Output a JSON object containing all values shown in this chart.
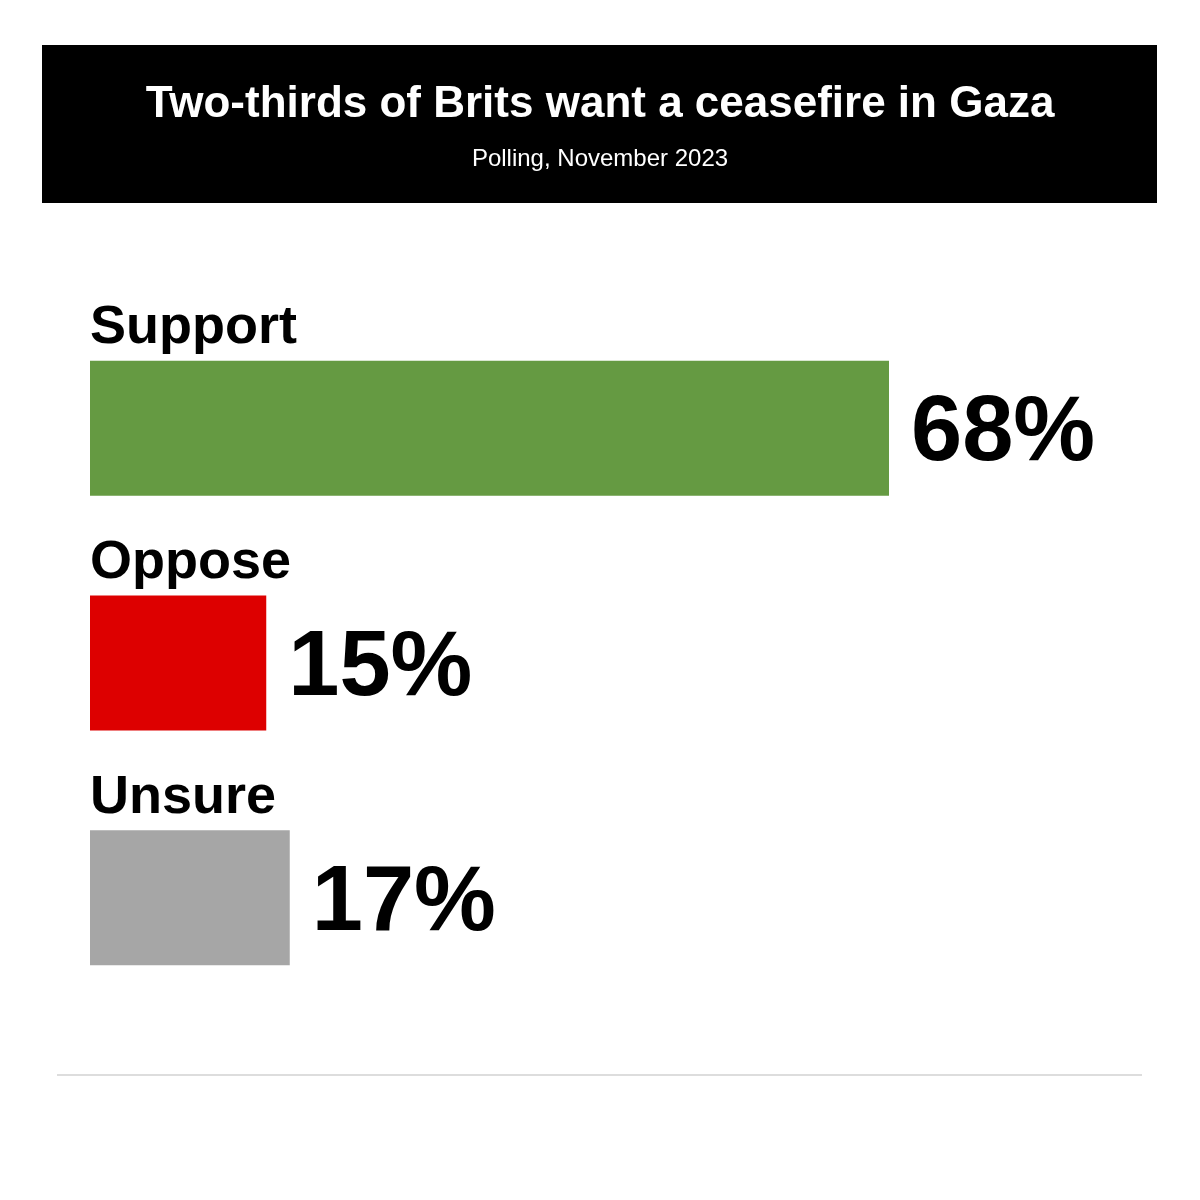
{
  "chart_data": {
    "type": "bar",
    "orientation": "horizontal",
    "title": "Two-thirds of Brits want a ceasefire in Gaza",
    "subtitle": "Polling, November 2023",
    "categories": [
      "Support",
      "Oppose",
      "Unsure"
    ],
    "values": [
      68,
      15,
      17
    ],
    "colors": [
      "#659a42",
      "#dd0000",
      "#a6a6a6"
    ],
    "value_labels": [
      "68%",
      "15%",
      "17%"
    ],
    "tick_labels": "y"
  }
}
